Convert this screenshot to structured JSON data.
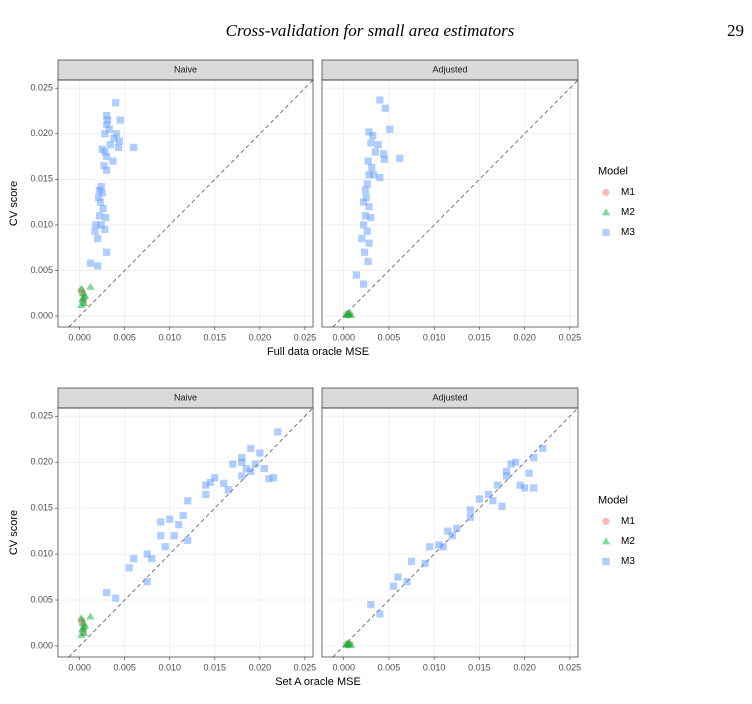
{
  "header": {
    "title": "Cross-validation for small area estimators",
    "page_number": "29"
  },
  "chart_data": [
    {
      "type": "scatter",
      "title": "Naive",
      "xlabel": "Full data oracle MSE",
      "ylabel": "CV score",
      "legend_title": "Model",
      "xlim": [
        -0.0024,
        0.0259
      ],
      "ylim": [
        -0.0012,
        0.0259
      ],
      "xticks": [
        {
          "value": 0,
          "label": "0.000"
        },
        {
          "value": 0.005,
          "label": "0.005"
        },
        {
          "value": 0.01,
          "label": "0.010"
        },
        {
          "value": 0.015,
          "label": "0.015"
        },
        {
          "value": 0.02,
          "label": "0.020"
        },
        {
          "value": 0.025,
          "label": "0.025"
        }
      ],
      "yticks": [
        {
          "value": 0,
          "label": "0.000"
        },
        {
          "value": 0.005,
          "label": "0.005"
        },
        {
          "value": 0.01,
          "label": "0.010"
        },
        {
          "value": 0.015,
          "label": "0.015"
        },
        {
          "value": 0.02,
          "label": "0.020"
        },
        {
          "value": 0.025,
          "label": "0.025"
        }
      ],
      "grid": true,
      "series": [
        {
          "name": "M1",
          "color": "#f8766d",
          "marker": "circle",
          "x": [
            0.0003,
            0.0004,
            0.0005,
            0.0002
          ],
          "values": [
            0.0025,
            0.0015,
            0.002,
            0.0028
          ]
        },
        {
          "name": "M2",
          "color": "#00ba38",
          "marker": "triangle",
          "x": [
            0.0002,
            0.0004,
            0.0003,
            0.0005,
            0.0012,
            0.0006,
            0.0002,
            0.0004
          ],
          "values": [
            0.003,
            0.0025,
            0.0018,
            0.0014,
            0.0032,
            0.0022,
            0.0012,
            0.002
          ]
        },
        {
          "name": "M3",
          "color": "#619cff",
          "marker": "square",
          "x": [
            0.0045,
            0.004,
            0.003,
            0.0031,
            0.003,
            0.0033,
            0.0028,
            0.0041,
            0.0038,
            0.0044,
            0.006,
            0.0025,
            0.0028,
            0.0043,
            0.0034,
            0.003,
            0.0037,
            0.0027,
            0.003,
            0.0024,
            0.0022,
            0.0025,
            0.0021,
            0.0023,
            0.0026,
            0.0022,
            0.0029,
            0.0024,
            0.0018,
            0.0017,
            0.0028,
            0.002,
            0.003,
            0.0012,
            0.002
          ],
          "values": [
            0.0215,
            0.0234,
            0.022,
            0.0215,
            0.021,
            0.0205,
            0.02,
            0.02,
            0.0195,
            0.0192,
            0.0185,
            0.0183,
            0.018,
            0.0185,
            0.0188,
            0.0175,
            0.017,
            0.0165,
            0.016,
            0.0142,
            0.0138,
            0.0135,
            0.013,
            0.0125,
            0.0118,
            0.011,
            0.0108,
            0.01,
            0.01,
            0.0093,
            0.0095,
            0.0085,
            0.007,
            0.0058,
            0.0055
          ]
        }
      ]
    },
    {
      "type": "scatter",
      "title": "Adjusted",
      "xlim": [
        -0.0024,
        0.0259
      ],
      "ylim": [
        -0.0012,
        0.0259
      ],
      "xticks": [
        {
          "value": 0,
          "label": "0.000"
        },
        {
          "value": 0.005,
          "label": "0.005"
        },
        {
          "value": 0.01,
          "label": "0.010"
        },
        {
          "value": 0.015,
          "label": "0.015"
        },
        {
          "value": 0.02,
          "label": "0.020"
        },
        {
          "value": 0.025,
          "label": "0.025"
        }
      ],
      "yticks": [
        0,
        0.005,
        0.01,
        0.015,
        0.02,
        0.025
      ],
      "grid": true,
      "series": [
        {
          "name": "M1",
          "color": "#f8766d",
          "marker": "circle",
          "x": [
            0.0003,
            0.0005,
            0.0007
          ],
          "values": [
            0.0002,
            0.0001,
            0.0002
          ]
        },
        {
          "name": "M2",
          "color": "#00ba38",
          "marker": "triangle",
          "x": [
            0.0003,
            0.0005,
            0.0006,
            0.0008,
            0.0004
          ],
          "values": [
            0.0001,
            0.0003,
            0.0002,
            0.0001,
            0.0002
          ]
        },
        {
          "name": "M3",
          "color": "#619cff",
          "marker": "square",
          "x": [
            0.004,
            0.0046,
            0.0051,
            0.0028,
            0.0032,
            0.003,
            0.0062,
            0.0038,
            0.0035,
            0.0044,
            0.0045,
            0.0027,
            0.0031,
            0.0028,
            0.0033,
            0.004,
            0.0026,
            0.0024,
            0.0025,
            0.0022,
            0.0028,
            0.0024,
            0.003,
            0.0022,
            0.0026,
            0.002,
            0.0028,
            0.0023,
            0.0027,
            0.0014,
            0.0022
          ],
          "values": [
            0.0237,
            0.0228,
            0.0205,
            0.0202,
            0.0198,
            0.019,
            0.0173,
            0.0188,
            0.018,
            0.0178,
            0.0172,
            0.017,
            0.0163,
            0.0155,
            0.0155,
            0.0152,
            0.0145,
            0.0138,
            0.013,
            0.0125,
            0.012,
            0.011,
            0.0108,
            0.01,
            0.0093,
            0.0085,
            0.008,
            0.007,
            0.006,
            0.0045,
            0.0035
          ]
        }
      ]
    },
    {
      "type": "scatter",
      "title": "Naive",
      "xlabel": "Set A oracle MSE",
      "ylabel": "CV score",
      "legend_title": "Model",
      "xlim": [
        -0.0024,
        0.0259
      ],
      "ylim": [
        -0.0012,
        0.0259
      ],
      "xticks": [
        {
          "value": 0,
          "label": "0.000"
        },
        {
          "value": 0.005,
          "label": "0.005"
        },
        {
          "value": 0.01,
          "label": "0.010"
        },
        {
          "value": 0.015,
          "label": "0.015"
        },
        {
          "value": 0.02,
          "label": "0.020"
        },
        {
          "value": 0.025,
          "label": "0.025"
        }
      ],
      "yticks": [
        {
          "value": 0,
          "label": "0.000"
        },
        {
          "value": 0.005,
          "label": "0.005"
        },
        {
          "value": 0.01,
          "label": "0.010"
        },
        {
          "value": 0.015,
          "label": "0.015"
        },
        {
          "value": 0.02,
          "label": "0.020"
        },
        {
          "value": 0.025,
          "label": "0.025"
        }
      ],
      "grid": true,
      "series": [
        {
          "name": "M1",
          "color": "#f8766d",
          "marker": "circle",
          "x": [
            0.0003,
            0.0004,
            0.0005,
            0.0002
          ],
          "values": [
            0.0025,
            0.0015,
            0.002,
            0.0028
          ]
        },
        {
          "name": "M2",
          "color": "#00ba38",
          "marker": "triangle",
          "x": [
            0.0002,
            0.0004,
            0.0003,
            0.0005,
            0.0012,
            0.0006,
            0.0002,
            0.0004
          ],
          "values": [
            0.003,
            0.0025,
            0.0018,
            0.0014,
            0.0032,
            0.0022,
            0.0012,
            0.002
          ]
        },
        {
          "name": "M3",
          "color": "#619cff",
          "marker": "square",
          "x": [
            0.003,
            0.004,
            0.0055,
            0.006,
            0.0075,
            0.0075,
            0.008,
            0.009,
            0.009,
            0.0095,
            0.01,
            0.011,
            0.0105,
            0.0115,
            0.012,
            0.012,
            0.014,
            0.0145,
            0.014,
            0.015,
            0.016,
            0.0165,
            0.017,
            0.018,
            0.018,
            0.0185,
            0.019,
            0.019,
            0.0195,
            0.02,
            0.0205,
            0.021,
            0.022,
            0.0215,
            0.018
          ],
          "values": [
            0.0058,
            0.0052,
            0.0085,
            0.0095,
            0.01,
            0.007,
            0.0095,
            0.012,
            0.0135,
            0.0108,
            0.0138,
            0.0132,
            0.012,
            0.0142,
            0.0158,
            0.0115,
            0.0165,
            0.0178,
            0.0175,
            0.0183,
            0.0177,
            0.017,
            0.0198,
            0.02,
            0.0185,
            0.0193,
            0.0215,
            0.019,
            0.0198,
            0.021,
            0.0193,
            0.0182,
            0.0233,
            0.0183,
            0.0205
          ]
        }
      ]
    },
    {
      "type": "scatter",
      "title": "Adjusted",
      "xlim": [
        -0.0024,
        0.0259
      ],
      "ylim": [
        -0.0012,
        0.0259
      ],
      "xticks": [
        {
          "value": 0,
          "label": "0.000"
        },
        {
          "value": 0.005,
          "label": "0.005"
        },
        {
          "value": 0.01,
          "label": "0.010"
        },
        {
          "value": 0.015,
          "label": "0.015"
        },
        {
          "value": 0.02,
          "label": "0.020"
        },
        {
          "value": 0.025,
          "label": "0.025"
        }
      ],
      "yticks": [
        0,
        0.005,
        0.01,
        0.015,
        0.02,
        0.025
      ],
      "grid": true,
      "series": [
        {
          "name": "M1",
          "color": "#f8766d",
          "marker": "circle",
          "x": [
            0.0003,
            0.0005,
            0.0007
          ],
          "values": [
            0.0002,
            0.0001,
            0.0002
          ]
        },
        {
          "name": "M2",
          "color": "#00ba38",
          "marker": "triangle",
          "x": [
            0.0003,
            0.0005,
            0.0006,
            0.0008,
            0.0004
          ],
          "values": [
            0.0001,
            0.0003,
            0.0002,
            0.0001,
            0.0002
          ]
        },
        {
          "name": "M3",
          "color": "#619cff",
          "marker": "square",
          "x": [
            0.003,
            0.004,
            0.0055,
            0.006,
            0.007,
            0.0075,
            0.009,
            0.0095,
            0.0105,
            0.011,
            0.0115,
            0.012,
            0.0125,
            0.014,
            0.014,
            0.015,
            0.016,
            0.0165,
            0.017,
            0.0175,
            0.018,
            0.018,
            0.0185,
            0.019,
            0.0195,
            0.02,
            0.0205,
            0.021,
            0.021,
            0.022
          ],
          "values": [
            0.0045,
            0.0035,
            0.0065,
            0.0075,
            0.007,
            0.0092,
            0.009,
            0.0108,
            0.011,
            0.0108,
            0.0125,
            0.012,
            0.0128,
            0.0148,
            0.014,
            0.016,
            0.0165,
            0.0158,
            0.0175,
            0.0152,
            0.019,
            0.0185,
            0.0198,
            0.02,
            0.0175,
            0.0172,
            0.0188,
            0.0205,
            0.0172,
            0.0215
          ]
        }
      ]
    }
  ]
}
